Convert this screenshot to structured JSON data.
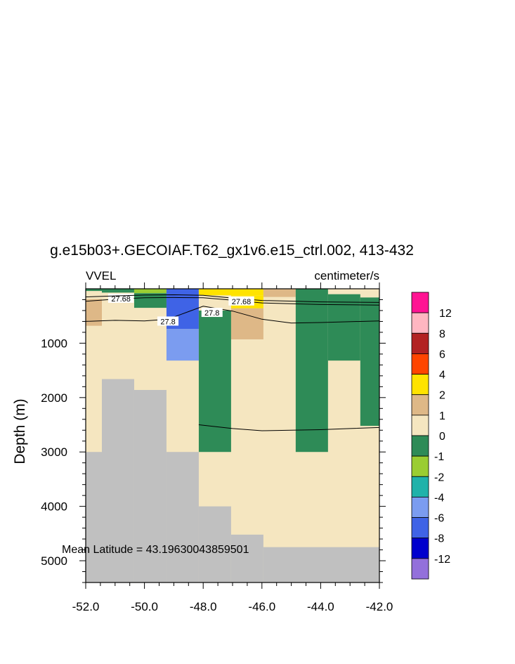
{
  "chart_data": {
    "type": "heatmap",
    "title": "g.e15b03+.GECOIAF.T62_gx1v6.e15_ctrl.002, 413-432",
    "left_label": "VVEL",
    "right_label": "centimeter/s",
    "ylabel": "Depth (m)",
    "xlabel": "",
    "xlim": [
      -52.0,
      -42.0
    ],
    "ylim": [
      0,
      5400
    ],
    "y_inverted": true,
    "x_ticks": [
      "-52.0",
      "-50.0",
      "-48.0",
      "-46.0",
      "-44.0",
      "-42.0"
    ],
    "y_ticks": [
      "1000",
      "2000",
      "3000",
      "4000",
      "5000"
    ],
    "annotation": "Mean Latitude = 43.19630043859501",
    "legend": {
      "labels": [
        "12",
        "8",
        "6",
        "4",
        "2",
        "1",
        "0",
        "-1",
        "-2",
        "-4",
        "-6",
        "-8",
        "-12"
      ],
      "colors": [
        "#FF1493",
        "#FFB6C1",
        "#B22222",
        "#FF4500",
        "#FFE300",
        "#DEB887",
        "#F5E6C0",
        "#2E8B57",
        "#9ACD32",
        "#20B2AA",
        "#7B9CF0",
        "#3F63E6",
        "#0000CD",
        "#9370DB"
      ]
    },
    "colors": {
      "land": "#C0C0C0",
      "pos0_1": "#F5E6C0",
      "pos1_2": "#DEB887",
      "pos2_4": "#FFE300",
      "neg0_1": "#2E8B57",
      "neg1_2": "#9ACD32",
      "neg4_6": "#7B9CF0",
      "neg6_8": "#3F63E6"
    },
    "cells": [
      {
        "x0": -52.0,
        "x1": -42.0,
        "y0": 0,
        "y1": 5400,
        "c": "pos0_1"
      },
      {
        "x0": -52.0,
        "x1": -51.45,
        "y0": 0,
        "y1": 40,
        "c": "neg0_1"
      },
      {
        "x0": -51.45,
        "x1": -50.35,
        "y0": 0,
        "y1": 70,
        "c": "neg0_1"
      },
      {
        "x0": -50.35,
        "x1": -49.25,
        "y0": 0,
        "y1": 80,
        "c": "neg1_2"
      },
      {
        "x0": -50.35,
        "x1": -49.25,
        "y0": 80,
        "y1": 350,
        "c": "neg0_1"
      },
      {
        "x0": -52.0,
        "x1": -51.45,
        "y0": 190,
        "y1": 680,
        "c": "pos1_2"
      },
      {
        "x0": -49.25,
        "x1": -48.15,
        "y0": 0,
        "y1": 740,
        "c": "neg6_8"
      },
      {
        "x0": -49.25,
        "x1": -48.15,
        "y0": 740,
        "y1": 1320,
        "c": "neg4_6"
      },
      {
        "x0": -48.15,
        "x1": -45.95,
        "y0": 0,
        "y1": 120,
        "c": "pos2_4"
      },
      {
        "x0": -47.05,
        "x1": -45.95,
        "y0": 120,
        "y1": 360,
        "c": "pos2_4"
      },
      {
        "x0": -47.05,
        "x1": -45.95,
        "y0": 360,
        "y1": 930,
        "c": "pos1_2"
      },
      {
        "x0": -48.15,
        "x1": -47.05,
        "y0": 400,
        "y1": 3000,
        "c": "neg0_1"
      },
      {
        "x0": -45.95,
        "x1": -44.85,
        "y0": 0,
        "y1": 150,
        "c": "pos1_2"
      },
      {
        "x0": -44.85,
        "x1": -43.75,
        "y0": 0,
        "y1": 3000,
        "c": "neg0_1"
      },
      {
        "x0": -43.75,
        "x1": -42.65,
        "y0": 100,
        "y1": 1320,
        "c": "neg0_1"
      },
      {
        "x0": -42.65,
        "x1": -42.0,
        "y0": 160,
        "y1": 2520,
        "c": "neg0_1"
      },
      {
        "x0": -52.0,
        "x1": -51.45,
        "y0": 3000,
        "y1": 5400,
        "c": "land"
      },
      {
        "x0": -51.45,
        "x1": -50.35,
        "y0": 1660,
        "y1": 5400,
        "c": "land"
      },
      {
        "x0": -50.35,
        "x1": -49.25,
        "y0": 1860,
        "y1": 5400,
        "c": "land"
      },
      {
        "x0": -49.25,
        "x1": -48.15,
        "y0": 3000,
        "y1": 5400,
        "c": "land"
      },
      {
        "x0": -48.15,
        "x1": -47.05,
        "y0": 4000,
        "y1": 5400,
        "c": "land"
      },
      {
        "x0": -47.05,
        "x1": -45.95,
        "y0": 4520,
        "y1": 5400,
        "c": "land"
      },
      {
        "x0": -45.95,
        "x1": -42.0,
        "y0": 4750,
        "y1": 5400,
        "c": "land"
      }
    ],
    "contours": [
      {
        "label": "27.68",
        "label_x": -50.8,
        "label_y": 180,
        "points": [
          [
            -52.0,
            230
          ],
          [
            -51.0,
            190
          ],
          [
            -50.0,
            165
          ],
          [
            -49.0,
            160
          ],
          [
            -48.0,
            165
          ],
          [
            -47.0,
            210
          ],
          [
            -46.0,
            260
          ],
          [
            -44.0,
            290
          ],
          [
            -42.0,
            300
          ]
        ]
      },
      {
        "label": "27.68",
        "label_x": -46.7,
        "label_y": 230,
        "points": [
          [
            -52.0,
            150
          ],
          [
            -51.0,
            130
          ],
          [
            -50.0,
            115
          ],
          [
            -49.0,
            110
          ],
          [
            -48.0,
            120
          ],
          [
            -47.0,
            170
          ],
          [
            -46.0,
            215
          ],
          [
            -44.0,
            240
          ],
          [
            -42.0,
            250
          ]
        ]
      },
      {
        "label": "27.8",
        "label_x": -49.2,
        "label_y": 600,
        "points": [
          [
            -52.0,
            600
          ],
          [
            -51.0,
            580
          ],
          [
            -50.0,
            590
          ],
          [
            -49.2,
            560
          ],
          [
            -48.5,
            420
          ],
          [
            -48.0,
            320
          ],
          [
            -47.0,
            410
          ],
          [
            -46.0,
            560
          ],
          [
            -45.0,
            630
          ],
          [
            -44.0,
            620
          ],
          [
            -42.0,
            590
          ]
        ]
      },
      {
        "label": "27.8",
        "label_x": -47.7,
        "label_y": 440,
        "points": []
      },
      {
        "label": "",
        "label_x": 0,
        "label_y": 0,
        "points": [
          [
            -48.15,
            2500
          ],
          [
            -47.0,
            2570
          ],
          [
            -46.0,
            2610
          ],
          [
            -45.0,
            2600
          ],
          [
            -44.0,
            2590
          ],
          [
            -43.0,
            2570
          ],
          [
            -42.0,
            2550
          ]
        ]
      }
    ]
  }
}
